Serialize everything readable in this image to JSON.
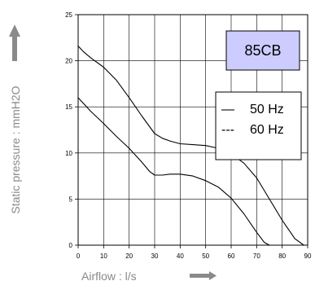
{
  "chart_data": {
    "type": "line",
    "title": "",
    "xlabel": "Airflow : l/s",
    "ylabel": "Static pressure : mmH2O",
    "xlim": [
      0,
      90
    ],
    "ylim": [
      0,
      25
    ],
    "x_ticks": [
      "0",
      "10",
      "20",
      "30",
      "40",
      "50",
      "60",
      "70",
      "80",
      "90"
    ],
    "y_ticks": [
      "0",
      "5",
      "10",
      "15",
      "20",
      "25"
    ],
    "grid": true,
    "model_label": "85CB",
    "legend": {
      "position": "right",
      "entries": [
        {
          "marker": "—",
          "label": "50 Hz"
        },
        {
          "marker": "---",
          "label": "60 Hz"
        }
      ]
    },
    "series": [
      {
        "name": "50 Hz",
        "x": [
          0,
          2,
          5,
          10,
          15,
          20,
          25,
          30,
          33,
          36,
          40,
          45,
          50,
          55,
          60,
          65,
          70,
          75,
          80,
          85,
          88.5
        ],
        "y": [
          21.6,
          21.0,
          20.3,
          19.3,
          17.9,
          16.0,
          14.0,
          12.1,
          11.6,
          11.3,
          11.0,
          10.9,
          10.8,
          10.5,
          9.9,
          8.9,
          7.3,
          5.0,
          2.7,
          0.7,
          0
        ]
      },
      {
        "name": "60 Hz",
        "x": [
          0,
          2,
          5,
          10,
          15,
          20,
          25,
          28,
          30,
          33,
          36,
          40,
          45,
          50,
          55,
          60,
          65,
          70,
          73,
          75
        ],
        "y": [
          16.0,
          15.4,
          14.5,
          13.2,
          11.8,
          10.5,
          9.0,
          8.0,
          7.6,
          7.6,
          7.7,
          7.7,
          7.5,
          7.0,
          6.3,
          5.1,
          3.4,
          1.4,
          0.3,
          0
        ]
      }
    ]
  }
}
